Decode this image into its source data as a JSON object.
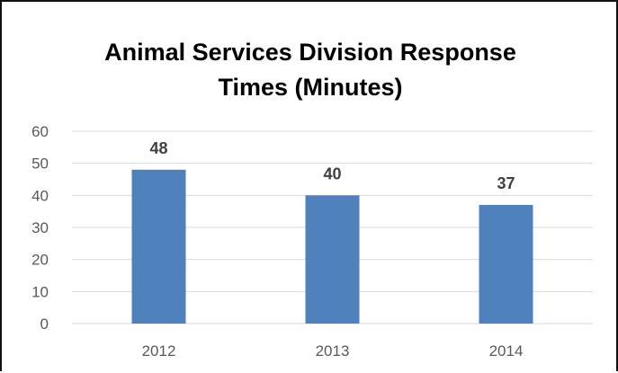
{
  "chart_data": {
    "type": "bar",
    "title_lines": [
      "Animal Services Division Response",
      "Times (Minutes)"
    ],
    "xlabel": "",
    "ylabel": "",
    "categories": [
      "2012",
      "2013",
      "2014"
    ],
    "values": [
      48,
      40,
      37
    ],
    "data_labels": [
      "48",
      "40",
      "37"
    ],
    "ylim": [
      0,
      60
    ],
    "yticks": [
      0,
      10,
      20,
      30,
      40,
      50,
      60
    ],
    "grid": true,
    "legend": "none",
    "bar_color": "#4F81BD",
    "grid_color": "#D9D9D9"
  }
}
